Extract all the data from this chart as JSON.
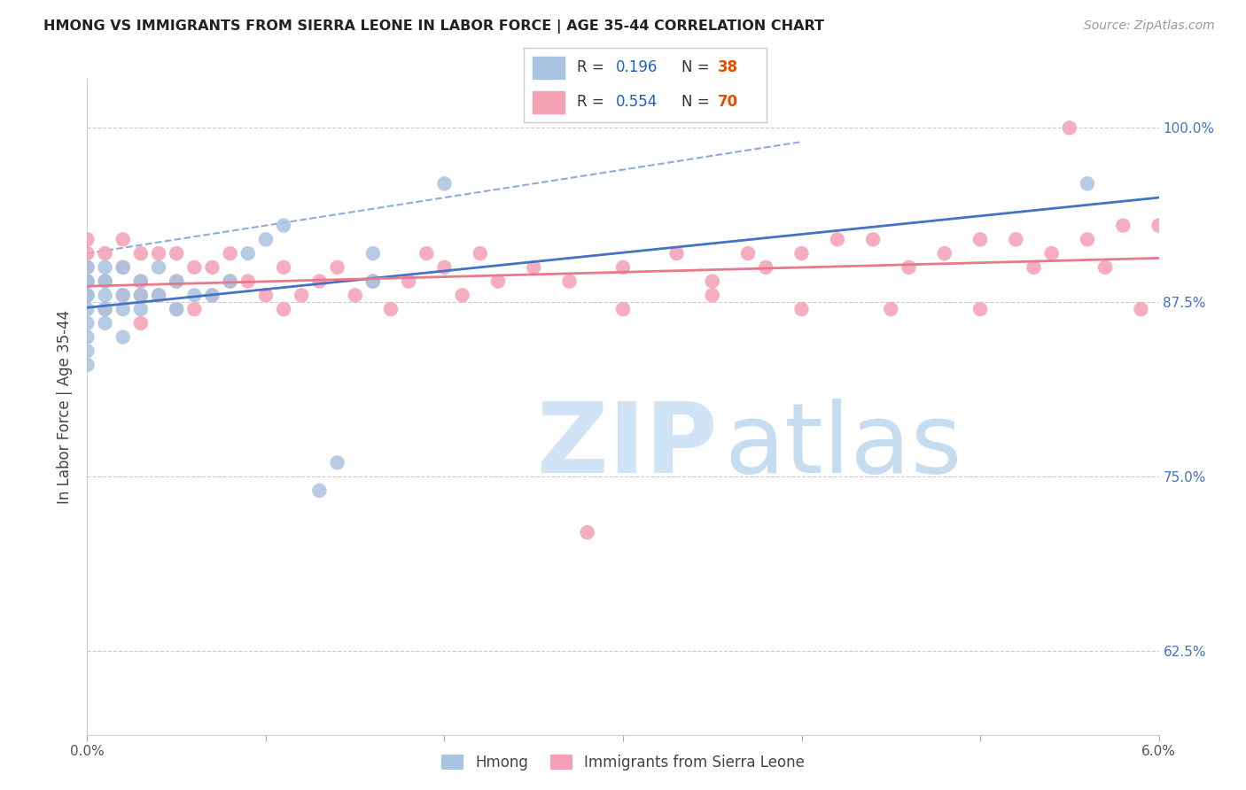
{
  "title": "HMONG VS IMMIGRANTS FROM SIERRA LEONE IN LABOR FORCE | AGE 35-44 CORRELATION CHART",
  "source": "Source: ZipAtlas.com",
  "ylabel": "In Labor Force | Age 35-44",
  "ytick_labels": [
    "100.0%",
    "87.5%",
    "75.0%",
    "62.5%"
  ],
  "ytick_values": [
    1.0,
    0.875,
    0.75,
    0.625
  ],
  "xmin": 0.0,
  "xmax": 0.06,
  "ymin": 0.565,
  "ymax": 1.035,
  "hmong_color": "#a8c4e0",
  "sierra_leone_color": "#f4a0b5",
  "hmong_line_color": "#4472c4",
  "sierra_leone_line_color": "#e8788a",
  "watermark_zip_color": "#d0e4f5",
  "watermark_atlas_color": "#b8d4ee",
  "legend_r1_val": "0.196",
  "legend_n1_val": "38",
  "legend_r2_val": "0.554",
  "legend_n2_val": "70",
  "legend_text_color": "#333333",
  "legend_n_color": "#e05000",
  "legend_r_color": "#2060c0",
  "hmong_x": [
    0.0,
    0.0,
    0.0,
    0.0,
    0.0,
    0.0,
    0.0,
    0.0,
    0.0,
    0.0,
    0.001,
    0.001,
    0.001,
    0.001,
    0.001,
    0.002,
    0.002,
    0.002,
    0.002,
    0.003,
    0.003,
    0.003,
    0.004,
    0.004,
    0.005,
    0.005,
    0.006,
    0.007,
    0.008,
    0.009,
    0.01,
    0.011,
    0.013,
    0.014,
    0.016,
    0.016,
    0.02,
    0.056
  ],
  "hmong_y": [
    0.86,
    0.87,
    0.88,
    0.88,
    0.89,
    0.89,
    0.9,
    0.83,
    0.84,
    0.85,
    0.86,
    0.87,
    0.88,
    0.89,
    0.9,
    0.85,
    0.87,
    0.88,
    0.9,
    0.87,
    0.88,
    0.89,
    0.88,
    0.9,
    0.87,
    0.89,
    0.88,
    0.88,
    0.89,
    0.91,
    0.92,
    0.93,
    0.74,
    0.76,
    0.89,
    0.91,
    0.96,
    0.96
  ],
  "sierra_leone_x": [
    0.0,
    0.0,
    0.0,
    0.0,
    0.0,
    0.001,
    0.001,
    0.001,
    0.002,
    0.002,
    0.002,
    0.003,
    0.003,
    0.003,
    0.003,
    0.004,
    0.004,
    0.005,
    0.005,
    0.005,
    0.006,
    0.006,
    0.007,
    0.007,
    0.008,
    0.008,
    0.009,
    0.01,
    0.011,
    0.011,
    0.012,
    0.013,
    0.014,
    0.015,
    0.016,
    0.017,
    0.018,
    0.019,
    0.02,
    0.021,
    0.022,
    0.023,
    0.025,
    0.027,
    0.028,
    0.03,
    0.033,
    0.035,
    0.037,
    0.038,
    0.04,
    0.042,
    0.044,
    0.046,
    0.048,
    0.05,
    0.052,
    0.053,
    0.054,
    0.056,
    0.057,
    0.058,
    0.059,
    0.06,
    0.03,
    0.035,
    0.04,
    0.045,
    0.05,
    0.055
  ],
  "sierra_leone_y": [
    0.88,
    0.89,
    0.9,
    0.91,
    0.92,
    0.87,
    0.89,
    0.91,
    0.88,
    0.9,
    0.92,
    0.86,
    0.88,
    0.89,
    0.91,
    0.88,
    0.91,
    0.87,
    0.89,
    0.91,
    0.87,
    0.9,
    0.88,
    0.9,
    0.89,
    0.91,
    0.89,
    0.88,
    0.87,
    0.9,
    0.88,
    0.89,
    0.9,
    0.88,
    0.89,
    0.87,
    0.89,
    0.91,
    0.9,
    0.88,
    0.91,
    0.89,
    0.9,
    0.89,
    0.71,
    0.9,
    0.91,
    0.89,
    0.91,
    0.9,
    0.91,
    0.92,
    0.92,
    0.9,
    0.91,
    0.92,
    0.92,
    0.9,
    0.91,
    0.92,
    0.9,
    0.93,
    0.87,
    0.93,
    0.87,
    0.88,
    0.87,
    0.87,
    0.87,
    1.0
  ]
}
